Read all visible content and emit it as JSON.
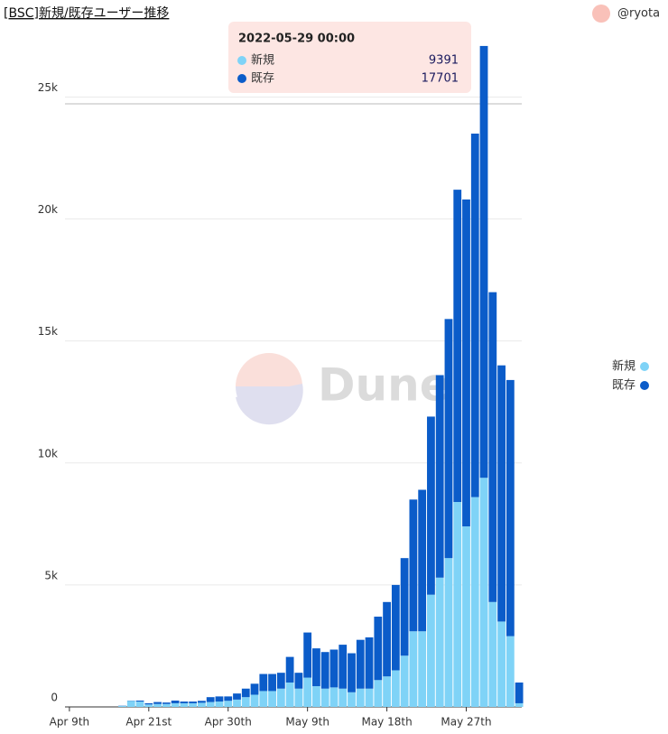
{
  "header": {
    "title": "[BSC]新規/既存ユーザー推移",
    "user": "@ryota"
  },
  "tooltip": {
    "date": "2022-05-29 00:00",
    "index": 47
  },
  "watermark": "Dune",
  "chart_data": {
    "type": "stacked_bar",
    "categories": [
      "Apr 9th",
      null,
      null,
      null,
      null,
      null,
      null,
      null,
      null,
      "Apr 21st",
      null,
      null,
      null,
      null,
      null,
      null,
      null,
      null,
      "Apr 30th",
      null,
      null,
      null,
      null,
      null,
      null,
      null,
      null,
      "May 9th",
      null,
      null,
      null,
      null,
      null,
      null,
      null,
      null,
      "May 18th",
      null,
      null,
      null,
      null,
      null,
      null,
      null,
      null,
      "May 27th",
      null,
      null,
      null,
      null,
      null,
      null
    ],
    "series": [
      {
        "name": "新規",
        "color": "#7fd3f7",
        "values": [
          0,
          0,
          0,
          0,
          0,
          0,
          40,
          250,
          220,
          100,
          120,
          120,
          150,
          150,
          150,
          170,
          200,
          220,
          250,
          300,
          400,
          500,
          650,
          650,
          750,
          1000,
          750,
          1200,
          850,
          750,
          800,
          750,
          600,
          750,
          750,
          1100,
          1250,
          1500,
          2100,
          3100,
          3100,
          4600,
          5300,
          6100,
          8400,
          7400,
          8600,
          9391,
          4300,
          3500,
          2900,
          150
        ]
      },
      {
        "name": "既存",
        "color": "#0b5cc9",
        "values": [
          0,
          0,
          0,
          0,
          0,
          0,
          10,
          10,
          40,
          50,
          80,
          60,
          110,
          70,
          70,
          80,
          200,
          210,
          180,
          250,
          350,
          450,
          700,
          700,
          650,
          1050,
          650,
          1850,
          1550,
          1500,
          1550,
          1800,
          1600,
          2000,
          2100,
          2600,
          3050,
          3500,
          4000,
          5400,
          5800,
          7300,
          8300,
          9800,
          12800,
          13400,
          14900,
          17701,
          12700,
          10500,
          10500,
          850
        ]
      }
    ],
    "ylim": [
      0,
      27200
    ],
    "yticks": [
      0,
      {
        "value": 5000,
        "label": "5k"
      },
      {
        "value": 10000,
        "label": "10k"
      },
      {
        "value": 15000,
        "label": "15k"
      },
      {
        "value": 20000,
        "label": "20k"
      },
      {
        "value": 25000,
        "label": "25k"
      }
    ],
    "grid": true
  }
}
